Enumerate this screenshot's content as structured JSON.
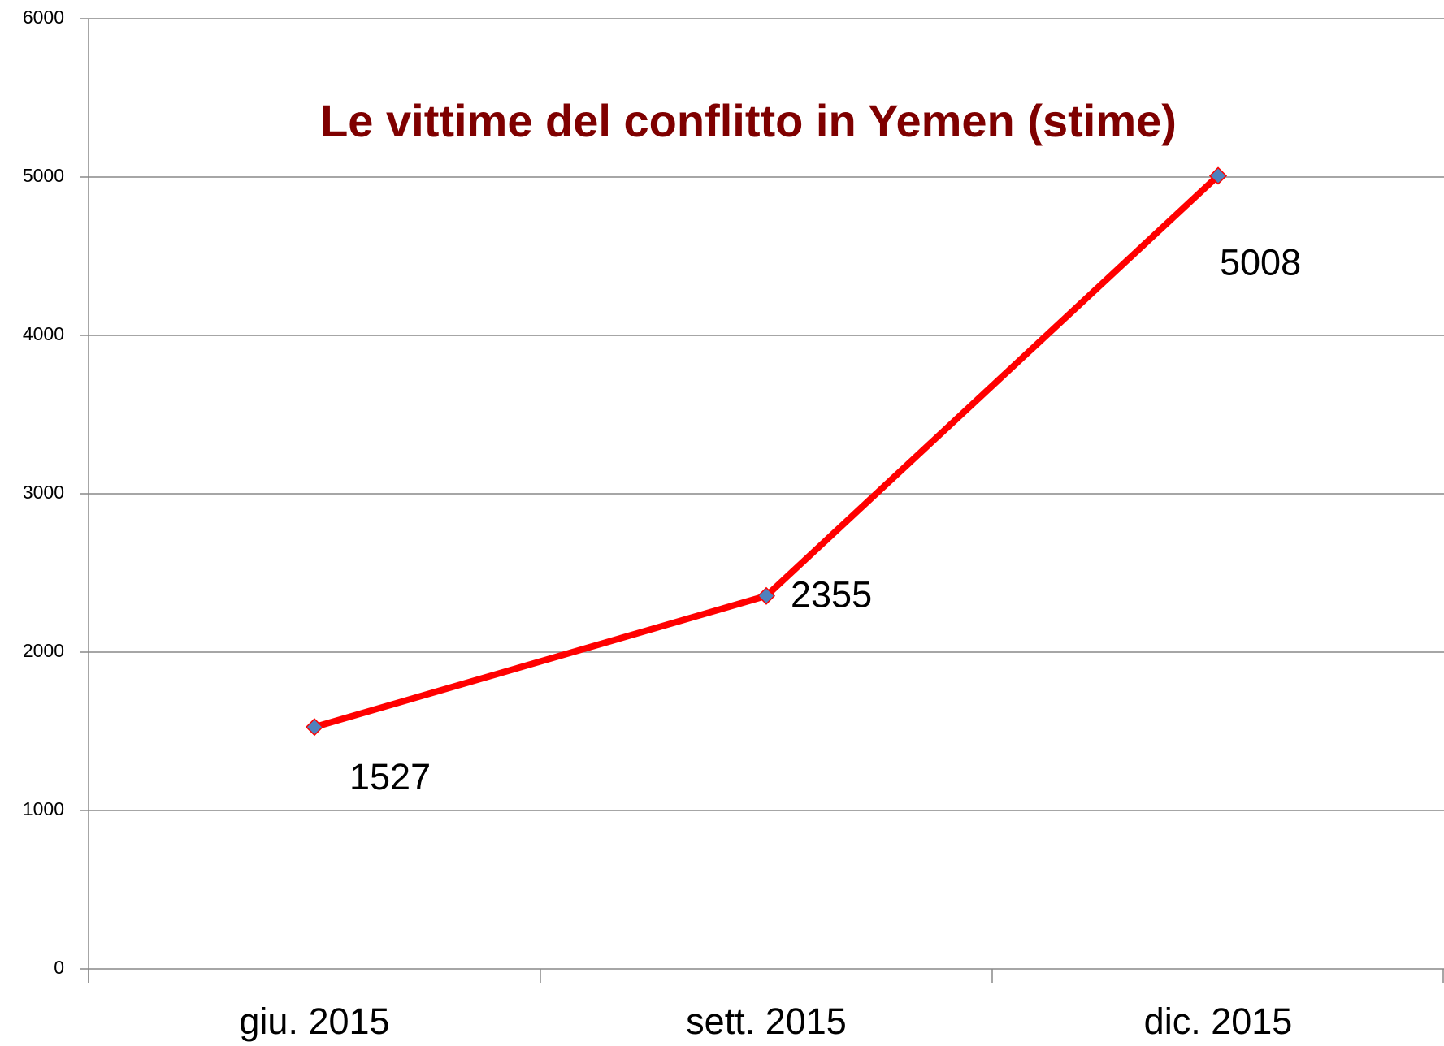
{
  "chart_data": {
    "type": "line",
    "title": "Le vittime del conflitto in Yemen (stime)",
    "categories": [
      "giu. 2015",
      "sett. 2015",
      "dic. 2015"
    ],
    "series": [
      {
        "color": "#ff0000",
        "marker_color": "#4f81bd",
        "values": [
          1527,
          2355,
          5008
        ]
      }
    ],
    "ylim": [
      0,
      6000
    ],
    "yticks": [
      0,
      1000,
      2000,
      3000,
      4000,
      5000,
      6000
    ],
    "grid": true
  }
}
